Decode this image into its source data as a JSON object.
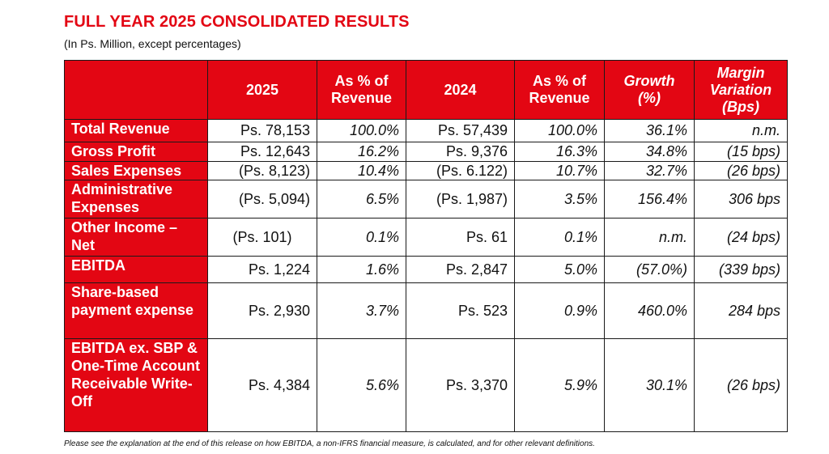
{
  "title": "FULL YEAR 2025 CONSOLIDATED RESULTS",
  "subtitle": "(In Ps. Million, except percentages)",
  "table": {
    "headers": [
      "2025",
      "As % of Revenue",
      "2024",
      "As % of Revenue",
      "Growth (%)",
      "Margin Variation (Bps)"
    ],
    "rows": [
      {
        "label": "Total Revenue",
        "values": [
          "Ps. 78,153",
          "100.0%",
          "Ps. 57,439",
          "100.0%",
          "36.1%",
          "n.m."
        ]
      },
      {
        "label": "Gross Profit",
        "values": [
          "Ps. 12,643",
          "16.2%",
          "Ps. 9,376",
          "16.3%",
          "34.8%",
          "(15 bps)"
        ]
      },
      {
        "label": "Sales Expenses",
        "values": [
          "(Ps. 8,123)",
          "10.4%",
          "(Ps. 6.122)",
          "10.7%",
          "32.7%",
          "(26 bps)"
        ]
      },
      {
        "label": "Administrative Expenses",
        "values": [
          "(Ps. 5,094)",
          "6.5%",
          "(Ps. 1,987)",
          "3.5%",
          "156.4%",
          "306 bps"
        ]
      },
      {
        "label": "Other Income – Net",
        "values": [
          "(Ps. 101)",
          "0.1%",
          "Ps. 61",
          "0.1%",
          "n.m.",
          "(24 bps)"
        ]
      },
      {
        "label": "EBITDA",
        "values": [
          "Ps. 1,224",
          "1.6%",
          "Ps. 2,847",
          "5.0%",
          "(57.0%)",
          "(339 bps)"
        ]
      },
      {
        "label": "Share-based payment expense",
        "values": [
          "Ps. 2,930",
          "3.7%",
          "Ps. 523",
          "0.9%",
          "460.0%",
          "284 bps"
        ]
      },
      {
        "label": "EBITDA ex. SBP & One-Time Account Receivable Write-Off",
        "values": [
          "Ps. 4,384",
          "5.6%",
          "Ps. 3,370",
          "5.9%",
          "30.1%",
          "(26 bps)"
        ]
      }
    ]
  },
  "footnote": "Please see the explanation at the end of this release on how EBITDA, a non-IFRS financial measure, is calculated, and for other relevant definitions.",
  "colors": {
    "accent": "#e30613"
  }
}
